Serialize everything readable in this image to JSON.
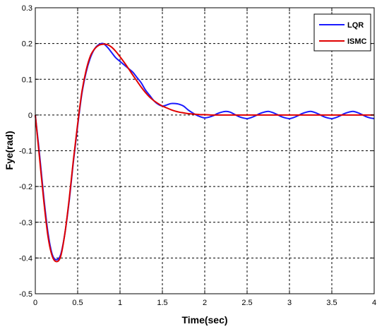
{
  "chart_data": {
    "type": "line",
    "title": "",
    "xlabel": "Time(sec)",
    "ylabel": "Fye(rad)",
    "xlim": [
      0,
      4
    ],
    "ylim": [
      -0.5,
      0.3
    ],
    "xticks": [
      0,
      0.5,
      1,
      1.5,
      2,
      2.5,
      3,
      3.5,
      4
    ],
    "xtick_labels": [
      "0",
      "0.5",
      "1",
      "1.5",
      "2",
      "2.5",
      "3",
      "3.5",
      "4"
    ],
    "yticks": [
      -0.5,
      -0.4,
      -0.3,
      -0.2,
      -0.1,
      0,
      0.1,
      0.2,
      0.3
    ],
    "ytick_labels": [
      "-0.5",
      "-0.4",
      "-0.3",
      "-0.2",
      "-0.1",
      "0",
      "0.1",
      "0.2",
      "0.3"
    ],
    "grid": true,
    "legend_position": "top-right",
    "series": [
      {
        "name": "LQR",
        "color": "#1a1aff",
        "x": [
          0,
          0.05,
          0.1,
          0.15,
          0.2,
          0.25,
          0.3,
          0.35,
          0.4,
          0.45,
          0.5,
          0.55,
          0.6,
          0.65,
          0.7,
          0.75,
          0.8,
          0.85,
          0.9,
          0.95,
          1.0,
          1.05,
          1.1,
          1.15,
          1.2,
          1.25,
          1.3,
          1.35,
          1.4,
          1.45,
          1.5,
          1.55,
          1.6,
          1.65,
          1.7,
          1.75,
          1.8,
          1.85,
          1.9,
          1.95,
          2.0,
          2.05,
          2.1,
          2.15,
          2.2,
          2.25,
          2.3,
          2.35,
          2.4,
          2.45,
          2.5,
          2.55,
          2.6,
          2.65,
          2.7,
          2.75,
          2.8,
          2.85,
          2.9,
          2.95,
          3.0,
          3.05,
          3.1,
          3.15,
          3.2,
          3.25,
          3.3,
          3.35,
          3.4,
          3.45,
          3.5,
          3.55,
          3.6,
          3.65,
          3.7,
          3.75,
          3.8,
          3.85,
          3.9,
          3.95,
          4.0
        ],
        "values": [
          0,
          -0.11,
          -0.23,
          -0.33,
          -0.39,
          -0.405,
          -0.39,
          -0.33,
          -0.24,
          -0.13,
          -0.03,
          0.06,
          0.12,
          0.16,
          0.185,
          0.197,
          0.2,
          0.19,
          0.175,
          0.16,
          0.15,
          0.14,
          0.13,
          0.12,
          0.105,
          0.09,
          0.07,
          0.055,
          0.04,
          0.03,
          0.025,
          0.028,
          0.032,
          0.032,
          0.03,
          0.025,
          0.015,
          0.007,
          0.0,
          -0.005,
          -0.008,
          -0.006,
          -0.002,
          0.004,
          0.008,
          0.01,
          0.008,
          0.002,
          -0.004,
          -0.008,
          -0.01,
          -0.007,
          -0.002,
          0.004,
          0.008,
          0.01,
          0.007,
          0.002,
          -0.004,
          -0.008,
          -0.01,
          -0.007,
          -0.002,
          0.004,
          0.008,
          0.01,
          0.007,
          0.002,
          -0.004,
          -0.008,
          -0.01,
          -0.007,
          -0.002,
          0.004,
          0.008,
          0.01,
          0.007,
          0.002,
          -0.004,
          -0.008,
          -0.01
        ]
      },
      {
        "name": "ISMC",
        "color": "#e00000",
        "x": [
          0,
          0.05,
          0.1,
          0.15,
          0.2,
          0.25,
          0.3,
          0.35,
          0.4,
          0.45,
          0.5,
          0.55,
          0.6,
          0.65,
          0.7,
          0.75,
          0.8,
          0.85,
          0.9,
          0.95,
          1.0,
          1.05,
          1.1,
          1.15,
          1.2,
          1.25,
          1.3,
          1.35,
          1.4,
          1.45,
          1.5,
          1.55,
          1.6,
          1.65,
          1.7,
          1.75,
          1.8,
          1.85,
          1.9,
          1.95,
          2.0,
          2.1,
          2.2,
          2.4,
          2.6,
          2.8,
          3.0,
          3.2,
          3.4,
          3.6,
          3.8,
          4.0
        ],
        "values": [
          0,
          -0.12,
          -0.24,
          -0.34,
          -0.395,
          -0.41,
          -0.395,
          -0.33,
          -0.235,
          -0.125,
          -0.025,
          0.065,
          0.125,
          0.165,
          0.185,
          0.195,
          0.198,
          0.197,
          0.19,
          0.178,
          0.163,
          0.147,
          0.13,
          0.112,
          0.095,
          0.078,
          0.063,
          0.05,
          0.04,
          0.032,
          0.025,
          0.02,
          0.015,
          0.011,
          0.008,
          0.006,
          0.004,
          0.003,
          0.002,
          0.001,
          0.001,
          0.0,
          0.0,
          0.0,
          0.0,
          0.0,
          0.0,
          0.0,
          0.0,
          0.0,
          0.0,
          0.0
        ]
      }
    ]
  }
}
